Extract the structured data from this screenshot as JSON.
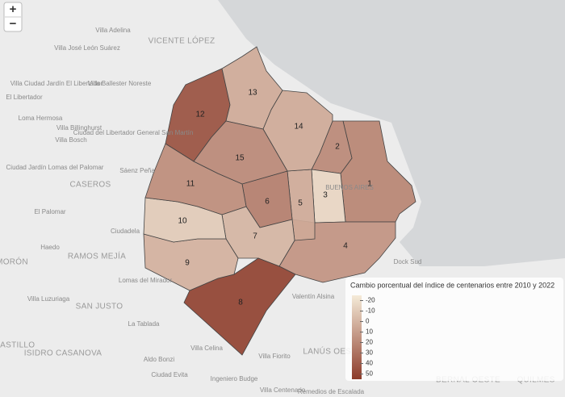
{
  "zoom": {
    "in": "+",
    "out": "−"
  },
  "places": [
    "Villa Adelina",
    "VICENTE LÓPEZ",
    "Villa José León Suárez",
    "Villa Ciudad Jardín El Libertador",
    "Villa Ballester Noreste",
    "El Libertador",
    "Loma Hermosa",
    "Villa Billinghurst",
    "Ciudad del Libertador General San Martín",
    "Villa Bosch",
    "Ciudad Jardín Lomas del Palomar",
    "Sáenz Peña",
    "CASEROS",
    "El Palomar",
    "Ciudadela",
    "Haedo",
    "MORÓN",
    "RAMOS MEJÍA",
    "Lomas del Mirador",
    "Villa Luzuriaga",
    "SAN JUSTO",
    "La Tablada",
    "CASTILLO",
    "ISIDRO CASANOVA",
    "Aldo Bonzi",
    "Villa Celina",
    "Ciudad Evita",
    "Ingeniero Budge",
    "Villa Fiorito",
    "LANÚS OESTE",
    "Valentín Alsina",
    "Dock Sud",
    "BUENOS AIRES",
    "BERNAL OESTE",
    "QUILMES",
    "Villa Centenario",
    "Remedios de Escalada"
  ],
  "comunas": [
    {
      "label": "1",
      "value": 22
    },
    {
      "label": "2",
      "value": 20
    },
    {
      "label": "3",
      "value": -15
    },
    {
      "label": "4",
      "value": 15
    },
    {
      "label": "5",
      "value": 5
    },
    {
      "label": "6",
      "value": 25
    },
    {
      "label": "7",
      "value": 0
    },
    {
      "label": "8",
      "value": 52
    },
    {
      "label": "9",
      "value": 2
    },
    {
      "label": "10",
      "value": -10
    },
    {
      "label": "11",
      "value": 18
    },
    {
      "label": "12",
      "value": 45
    },
    {
      "label": "13",
      "value": 5
    },
    {
      "label": "14",
      "value": 5
    },
    {
      "label": "15",
      "value": 20
    }
  ],
  "legend": {
    "title": "Cambio porcentual del índice de centenarios entre 2010 y 2022",
    "range": [
      -25,
      55
    ],
    "colors": [
      "#f5ebd8",
      "#8c3b2a"
    ],
    "ticks": [
      -20,
      -10,
      0,
      10,
      20,
      30,
      40,
      50
    ]
  }
}
